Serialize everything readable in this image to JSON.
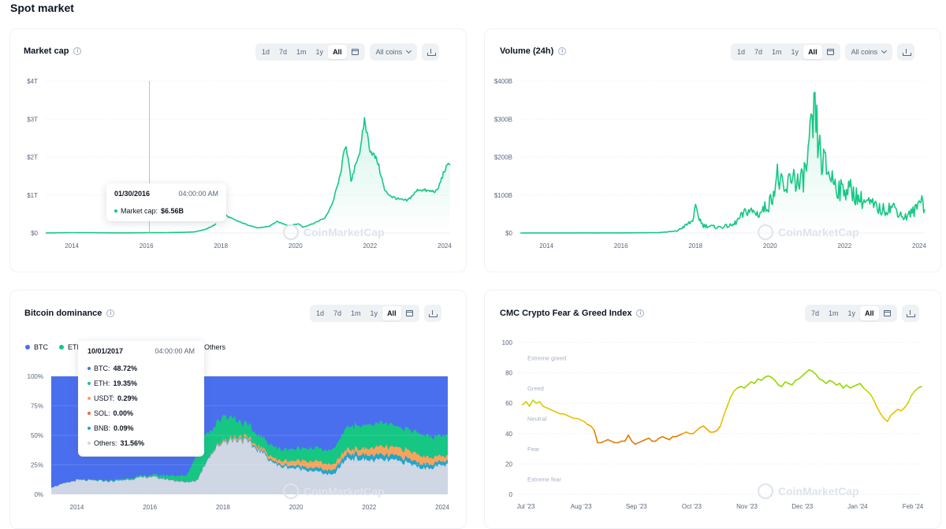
{
  "page": {
    "title": "Spot market"
  },
  "cards": {
    "market_cap": {
      "title": "Market cap",
      "ranges": [
        "1d",
        "7d",
        "1m",
        "1y",
        "All"
      ],
      "active": "All",
      "coins_label": "All coins",
      "tooltip": {
        "date": "01/30/2016",
        "time": "04:00:00 AM",
        "label": "Market cap:",
        "value": "$6.56B"
      },
      "watermark": "CoinMarketCap"
    },
    "volume": {
      "title": "Volume (24h)",
      "ranges": [
        "1d",
        "7d",
        "1m",
        "1y",
        "All"
      ],
      "active": "All",
      "coins_label": "All coins",
      "watermark": "CoinMarketCap"
    },
    "dominance": {
      "title": "Bitcoin dominance",
      "ranges": [
        "1d",
        "7d",
        "1m",
        "1y",
        "All"
      ],
      "active": "All",
      "legend": {
        "btc": "BTC",
        "eth": "ETH",
        "others": "Others"
      },
      "tooltip": {
        "date": "10/01/2017",
        "time": "04:00:00 AM",
        "rows": [
          {
            "label": "BTC:",
            "value": "48.72%",
            "color": "#4a6fee"
          },
          {
            "label": "ETH:",
            "value": "19.35%",
            "color": "#16c784"
          },
          {
            "label": "USDT:",
            "value": "0.29%",
            "color": "#f7a35c"
          },
          {
            "label": "SOL:",
            "value": "0.00%",
            "color": "#ea6947"
          },
          {
            "label": "BNB:",
            "value": "0.09%",
            "color": "#1fa8c9"
          },
          {
            "label": "Others:",
            "value": "31.56%",
            "color": "#cfd6e4"
          }
        ]
      },
      "watermark": "CoinMarketCap"
    },
    "fear_greed": {
      "title": "CMC Crypto Fear & Greed Index",
      "ranges": [
        "7d",
        "1m",
        "1y",
        "All"
      ],
      "active": "All",
      "zones": [
        "Extreme greed",
        "Greed",
        "Neutral",
        "Fear",
        "Extreme fear"
      ],
      "watermark": "CoinMarketCap"
    }
  },
  "colors": {
    "green": "#16c784",
    "btc_blue": "#4a6fee",
    "others_gray": "#cfd6e4",
    "axis_text": "#58667e"
  },
  "chart_data": [
    {
      "id": "market_cap",
      "type": "area",
      "title": "Market cap",
      "x_ticks": [
        "2014",
        "2016",
        "2018",
        "2020",
        "2022",
        "2024"
      ],
      "y_ticks": [
        "$0",
        "$1T",
        "$2T",
        "$3T",
        "$4T"
      ],
      "ylim": [
        0,
        4
      ],
      "y_unit": "trillion USD",
      "points": [
        [
          2013.3,
          0.002
        ],
        [
          2014,
          0.01
        ],
        [
          2014.5,
          0.008
        ],
        [
          2015,
          0.005
        ],
        [
          2015.5,
          0.004
        ],
        [
          2016,
          0.007
        ],
        [
          2016.5,
          0.01
        ],
        [
          2017,
          0.018
        ],
        [
          2017.3,
          0.03
        ],
        [
          2017.6,
          0.1
        ],
        [
          2017.9,
          0.25
        ],
        [
          2018.0,
          0.8
        ],
        [
          2018.15,
          0.45
        ],
        [
          2018.4,
          0.33
        ],
        [
          2018.7,
          0.22
        ],
        [
          2019.0,
          0.13
        ],
        [
          2019.3,
          0.18
        ],
        [
          2019.5,
          0.3
        ],
        [
          2019.8,
          0.2
        ],
        [
          2020.1,
          0.24
        ],
        [
          2020.2,
          0.15
        ],
        [
          2020.5,
          0.26
        ],
        [
          2020.8,
          0.4
        ],
        [
          2021.0,
          0.8
        ],
        [
          2021.2,
          1.5
        ],
        [
          2021.35,
          2.4
        ],
        [
          2021.5,
          1.3
        ],
        [
          2021.6,
          1.8
        ],
        [
          2021.75,
          2.2
        ],
        [
          2021.85,
          3.0
        ],
        [
          2022.0,
          2.2
        ],
        [
          2022.2,
          1.9
        ],
        [
          2022.4,
          1.1
        ],
        [
          2022.6,
          0.95
        ],
        [
          2022.8,
          0.88
        ],
        [
          2023.0,
          0.85
        ],
        [
          2023.3,
          1.15
        ],
        [
          2023.6,
          1.1
        ],
        [
          2023.8,
          1.1
        ],
        [
          2024.0,
          1.65
        ],
        [
          2024.15,
          1.85
        ]
      ]
    },
    {
      "id": "volume",
      "type": "area",
      "title": "Volume (24h)",
      "x_ticks": [
        "2014",
        "2016",
        "2018",
        "2020",
        "2022",
        "2024"
      ],
      "y_ticks": [
        "$0",
        "$100B",
        "$200B",
        "$300B",
        "$400B"
      ],
      "ylim": [
        0,
        400
      ],
      "y_unit": "billion USD",
      "points": [
        [
          2013.3,
          0.1
        ],
        [
          2014,
          0.2
        ],
        [
          2015,
          0.3
        ],
        [
          2016,
          0.4
        ],
        [
          2017,
          1
        ],
        [
          2017.5,
          5
        ],
        [
          2017.9,
          30
        ],
        [
          2018.0,
          60
        ],
        [
          2018.2,
          20
        ],
        [
          2018.6,
          15
        ],
        [
          2019.0,
          20
        ],
        [
          2019.4,
          60
        ],
        [
          2019.7,
          50
        ],
        [
          2020.0,
          80
        ],
        [
          2020.2,
          150
        ],
        [
          2020.4,
          100
        ],
        [
          2020.6,
          160
        ],
        [
          2020.8,
          120
        ],
        [
          2021.0,
          180
        ],
        [
          2021.1,
          250
        ],
        [
          2021.2,
          310
        ],
        [
          2021.35,
          200
        ],
        [
          2021.5,
          170
        ],
        [
          2021.7,
          140
        ],
        [
          2021.9,
          110
        ],
        [
          2022.0,
          120
        ],
        [
          2022.2,
          110
        ],
        [
          2022.4,
          90
        ],
        [
          2022.6,
          80
        ],
        [
          2022.8,
          70
        ],
        [
          2023.0,
          60
        ],
        [
          2023.3,
          70
        ],
        [
          2023.6,
          40
        ],
        [
          2023.9,
          60
        ],
        [
          2024.0,
          80
        ],
        [
          2024.05,
          110
        ],
        [
          2024.15,
          55
        ]
      ]
    },
    {
      "id": "dominance",
      "type": "area",
      "title": "Bitcoin dominance",
      "x_ticks": [
        "2014",
        "2016",
        "2018",
        "2020",
        "2022",
        "2024"
      ],
      "y_ticks": [
        "0%",
        "25%",
        "50%",
        "75%",
        "100%"
      ],
      "ylim": [
        0,
        100
      ],
      "series": [
        {
          "name": "BTC",
          "color": "#4a6fee",
          "points": [
            [
              2013.3,
              94
            ],
            [
              2014,
              88
            ],
            [
              2015,
              88
            ],
            [
              2016,
              84
            ],
            [
              2017,
              85
            ],
            [
              2017.3,
              70
            ],
            [
              2017.6,
              48
            ],
            [
              2017.9,
              55
            ],
            [
              2018.0,
              35
            ],
            [
              2018.5,
              40
            ],
            [
              2019,
              52
            ],
            [
              2019.5,
              68
            ],
            [
              2020,
              68
            ],
            [
              2020.5,
              64
            ],
            [
              2021,
              70
            ],
            [
              2021.4,
              42
            ],
            [
              2021.8,
              42
            ],
            [
              2022.2,
              42
            ],
            [
              2022.6,
              41
            ],
            [
              2023,
              41
            ],
            [
              2023.4,
              47
            ],
            [
              2023.8,
              51
            ],
            [
              2024.15,
              51
            ]
          ]
        },
        {
          "name": "ETH",
          "color": "#16c784",
          "points": [
            [
              2013.3,
              0
            ],
            [
              2016,
              1
            ],
            [
              2017,
              5
            ],
            [
              2017.4,
              28
            ],
            [
              2017.7,
              19
            ],
            [
              2018.1,
              20
            ],
            [
              2018.5,
              12
            ],
            [
              2019,
              9
            ],
            [
              2020,
              10
            ],
            [
              2021,
              12
            ],
            [
              2021.4,
              19
            ],
            [
              2022,
              20
            ],
            [
              2022.6,
              19
            ],
            [
              2023,
              18
            ],
            [
              2024.15,
              17
            ]
          ]
        },
        {
          "name": "USDT",
          "color": "#f7a35c",
          "points": [
            [
              2013.3,
              0
            ],
            [
              2017.5,
              0.3
            ],
            [
              2018.5,
              2
            ],
            [
              2019.5,
              3
            ],
            [
              2020.5,
              6
            ],
            [
              2021.5,
              4
            ],
            [
              2022.3,
              7
            ],
            [
              2022.8,
              7
            ],
            [
              2023.4,
              7
            ],
            [
              2024.15,
              4
            ]
          ]
        },
        {
          "name": "BNB",
          "color": "#1fa8c9",
          "points": [
            [
              2013.3,
              0
            ],
            [
              2018,
              0.5
            ],
            [
              2019.5,
              1.5
            ],
            [
              2021.4,
              4
            ],
            [
              2022.5,
              4
            ],
            [
              2023.5,
              3.5
            ],
            [
              2024.15,
              3
            ]
          ]
        },
        {
          "name": "Others",
          "color": "#cfd6e4",
          "points": [
            [
              2013.3,
              6
            ],
            [
              2014,
              12
            ],
            [
              2015,
              11
            ],
            [
              2016,
              15
            ],
            [
              2017,
              10
            ],
            [
              2017.3,
              12
            ],
            [
              2017.6,
              31.6
            ],
            [
              2018.0,
              45
            ],
            [
              2018.5,
              47
            ],
            [
              2019,
              37
            ],
            [
              2019.5,
              24
            ],
            [
              2020,
              22
            ],
            [
              2020.5,
              20
            ],
            [
              2021,
              16
            ],
            [
              2021.4,
              31
            ],
            [
              2022,
              29
            ],
            [
              2022.6,
              29
            ],
            [
              2023,
              27
            ],
            [
              2023.5,
              22
            ],
            [
              2024.15,
              25
            ]
          ]
        }
      ]
    },
    {
      "id": "fear_greed",
      "type": "line",
      "title": "CMC Crypto Fear & Greed Index",
      "x_ticks": [
        "Jul '23",
        "Aug '23",
        "Sep '23",
        "Oct '23",
        "Nov '23",
        "Dec '23",
        "Jan '24",
        "Feb '24"
      ],
      "y_ticks": [
        "0",
        "20",
        "40",
        "60",
        "80",
        "100"
      ],
      "ylim": [
        0,
        100
      ],
      "values": [
        59,
        61,
        58,
        62,
        60,
        61,
        58,
        57,
        56,
        55,
        54,
        53,
        53,
        52,
        51,
        50,
        50,
        49,
        48,
        46,
        45,
        42,
        34,
        34,
        35,
        36,
        35,
        34,
        34,
        35,
        35,
        39,
        35,
        33,
        34,
        35,
        36,
        37,
        35,
        35,
        37,
        38,
        37,
        36,
        38,
        38,
        39,
        40,
        41,
        40,
        40,
        42,
        44,
        45,
        43,
        41,
        41,
        42,
        45,
        52,
        58,
        64,
        68,
        70,
        71,
        70,
        72,
        74,
        73,
        76,
        75,
        77,
        78,
        77,
        75,
        72,
        71,
        74,
        73,
        72,
        75,
        76,
        78,
        80,
        82,
        81,
        79,
        76,
        75,
        73,
        75,
        74,
        72,
        73,
        70,
        72,
        70,
        71,
        72,
        73,
        70,
        68,
        66,
        62,
        57,
        53,
        50,
        48,
        52,
        54,
        56,
        55,
        57,
        60,
        65,
        68,
        70,
        71
      ]
    }
  ]
}
